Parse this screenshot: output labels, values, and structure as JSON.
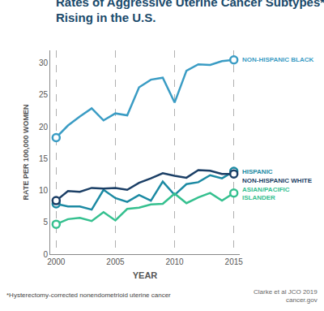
{
  "chart_data": {
    "type": "line",
    "title": "Rates of Aggressive Uterine Cancer Subtypes*\nRising in the U.S.",
    "x_label": "YEAR",
    "y_label": "RATE PER 100,000 WOMEN",
    "footnote": "*Hysterectomy-corrected nonendometrioid uterine cancer",
    "source": "Clarke et al JCO 2019\ncancer.gov",
    "x": [
      2000,
      2001,
      2002,
      2003,
      2004,
      2005,
      2006,
      2007,
      2008,
      2009,
      2010,
      2011,
      2012,
      2013,
      2014,
      2015
    ],
    "series": [
      {
        "name": "NON-HISPANIC BLACK",
        "color": "#3a9cc4",
        "values": [
          18.3,
          20.2,
          21.6,
          22.9,
          21.0,
          22.1,
          21.8,
          26.2,
          27.4,
          27.7,
          23.8,
          28.8,
          29.8,
          29.7,
          30.3,
          30.5
        ]
      },
      {
        "name": "HISPANIC",
        "color": "#1c8aa3",
        "values": [
          7.9,
          7.5,
          7.5,
          7.0,
          10.1,
          8.8,
          8.2,
          9.3,
          8.4,
          11.4,
          9.3,
          11.0,
          11.3,
          12.4,
          11.9,
          13.0
        ]
      },
      {
        "name": "NON-HISPANIC WHITE",
        "color": "#1b3f66",
        "values": [
          8.4,
          9.9,
          9.8,
          10.4,
          10.3,
          10.4,
          10.1,
          11.2,
          11.9,
          12.7,
          12.3,
          12.0,
          13.2,
          13.1,
          12.6,
          12.6
        ]
      },
      {
        "name": "ASIAN/PACIFIC\nISLANDER",
        "color": "#35c08f",
        "values": [
          4.7,
          5.5,
          5.7,
          5.2,
          6.6,
          5.3,
          7.1,
          7.3,
          7.8,
          7.9,
          9.5,
          8.0,
          8.9,
          9.6,
          8.4,
          9.6
        ]
      }
    ],
    "xlim": [
      1999.5,
      2015.5
    ],
    "xticks": [
      2000,
      2005,
      2010,
      2015
    ],
    "ylim": [
      0,
      32
    ],
    "yticks": [
      0,
      5,
      10,
      15,
      20,
      25,
      30
    ],
    "grid": "x",
    "marker": "circle"
  }
}
